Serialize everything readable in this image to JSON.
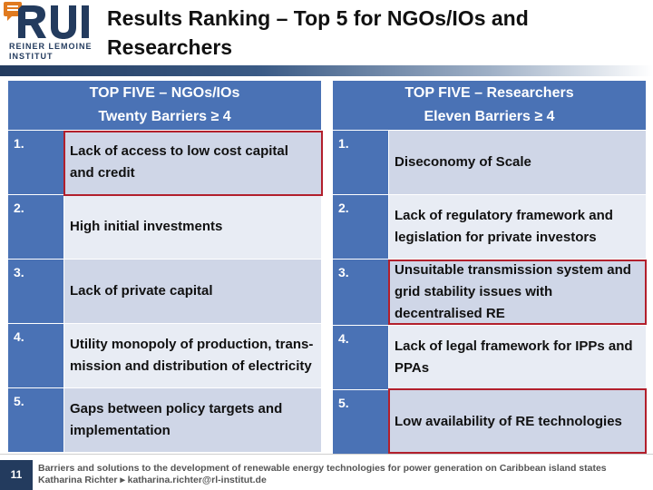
{
  "logo": {
    "line1": "REINER LEMOINE",
    "line2": "INSTITUT"
  },
  "slide": {
    "title": "Results Ranking – Top 5 for NGOs/IOs and Researchers"
  },
  "left_table": {
    "header_line1": "TOP FIVE – NGOs/IOs",
    "header_line2": "Twenty Barriers ≥ 4",
    "rows": [
      {
        "num": "1.",
        "text": "Lack of access to low cost  capital and credit"
      },
      {
        "num": "2.",
        "text": "High initial investments"
      },
      {
        "num": "3.",
        "text": "Lack of private capital"
      },
      {
        "num": "4.",
        "text": "Utility monopoly of production, trans-mission and distribution of electricity"
      },
      {
        "num": "5.",
        "text": "Gaps between policy targets and implementation"
      }
    ]
  },
  "right_table": {
    "header_line1": "TOP FIVE – Researchers",
    "header_line2": "Eleven Barriers ≥ 4",
    "rows": [
      {
        "num": "1.",
        "text": "Diseconomy of Scale"
      },
      {
        "num": "2.",
        "text": "Lack of regulatory framework and legislation for private investors"
      },
      {
        "num": "3.",
        "text": "Unsuitable transmission system and grid stability issues with decentralised RE"
      },
      {
        "num": "4.",
        "text": "Lack of legal framework for IPPs and PPAs"
      },
      {
        "num": "5.",
        "text": "Low availability of RE technologies"
      }
    ]
  },
  "footer": {
    "page_number": "11",
    "line1": "Barriers and solutions to the development of renewable energy technologies for power generation on Caribbean island states",
    "line2": "Katharina Richter ▸ katharina.richter@rl-institut.de"
  },
  "colors": {
    "header_blue": "#4a72b5",
    "highlight_red": "#b21f2c",
    "navy": "#233b5e"
  }
}
